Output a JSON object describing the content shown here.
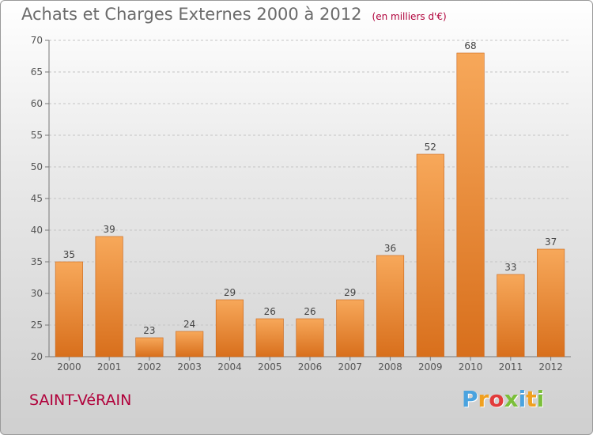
{
  "chart_data": {
    "type": "bar",
    "title": "Achats et Charges Externes 2000 à 2012",
    "subtitle": "(en milliers d'€)",
    "categories": [
      "2000",
      "2001",
      "2002",
      "2003",
      "2004",
      "2005",
      "2006",
      "2007",
      "2008",
      "2009",
      "2010",
      "2011",
      "2012"
    ],
    "values": [
      35,
      39,
      23,
      24,
      29,
      26,
      26,
      29,
      36,
      52,
      68,
      33,
      37
    ],
    "ylim": [
      20,
      70
    ],
    "yticks": [
      20,
      25,
      30,
      35,
      40,
      45,
      50,
      55,
      60,
      65,
      70
    ],
    "grid": true,
    "bar_color": "#f08c3a",
    "bar_color_light": "#f7a85a",
    "bar_color_dark": "#d86f1c"
  },
  "footer": {
    "commune": "SAINT-VéRAIN",
    "logo_letters": [
      "P",
      "r",
      "o",
      "x",
      "i",
      "t",
      "i"
    ],
    "logo_colors": [
      "#4aa3df",
      "#f0a020",
      "#e23b3b",
      "#7bbf3a",
      "#4aa3df",
      "#f0a020",
      "#7bbf3a"
    ]
  }
}
